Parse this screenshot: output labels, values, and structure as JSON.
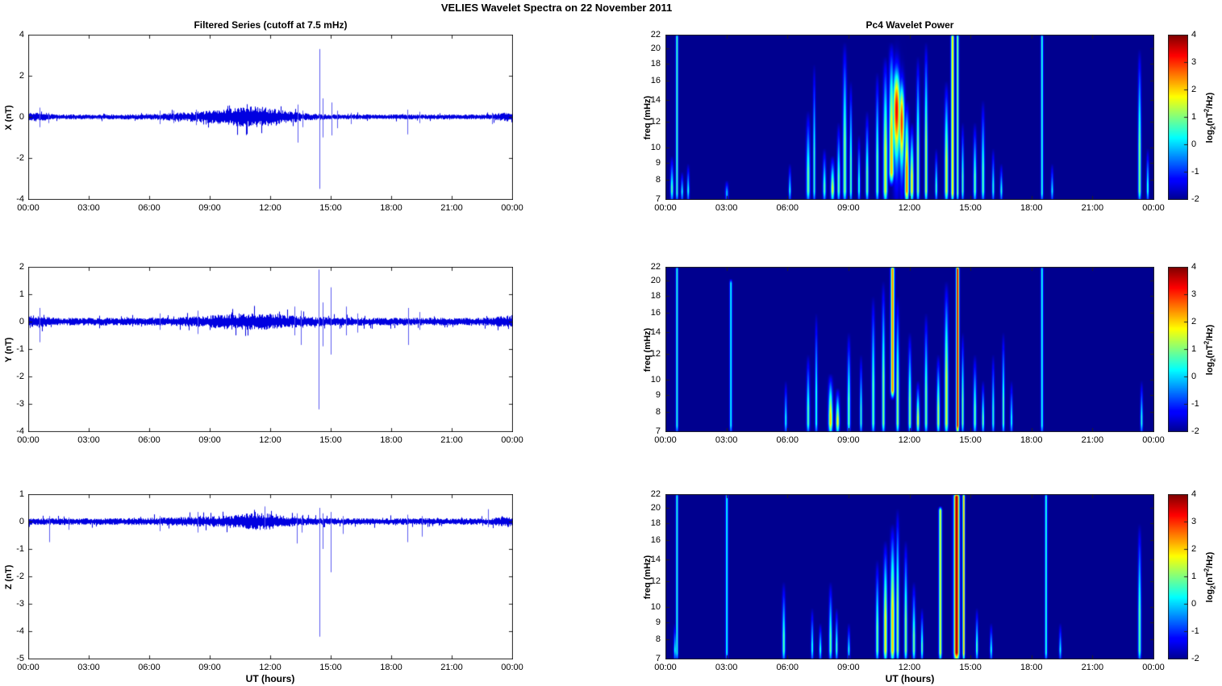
{
  "figure": {
    "title": "VELIES Wavelet Spectra on 22 November  2011"
  },
  "axis_labels": {
    "x": "UT (hours)",
    "freq": "freq (mHz)",
    "colorbar": {
      "p1": "log",
      "p2": "2",
      "p3": "(nT",
      "p4": "2",
      "p5": "/Hz)"
    }
  },
  "x_axis": {
    "range_hours": [
      0,
      24
    ],
    "tick_hours": [
      0,
      3,
      6,
      9,
      12,
      15,
      18,
      21,
      24
    ],
    "tick_labels": [
      "00:00",
      "03:00",
      "06:00",
      "09:00",
      "12:00",
      "15:00",
      "18:00",
      "21:00",
      "00:00"
    ]
  },
  "colorbar": {
    "range": [
      -2,
      4
    ],
    "ticks": [
      4,
      3,
      2,
      1,
      0,
      -1,
      -2
    ]
  },
  "colors": {
    "series_line": "#0000e0",
    "spike_line": "#5a5af0",
    "axis": "#222222",
    "background": "#ffffff"
  },
  "chart_data": [
    {
      "type": "line",
      "name": "filtered-series-x",
      "title": "Filtered Series (cutoff at 7.5 mHz)",
      "ylabel": "X (nT)",
      "ylim": [
        -4,
        4
      ],
      "yticks": [
        4,
        2,
        0,
        -2,
        -4
      ],
      "seed": 11,
      "noise_base": 0.12,
      "noise_bumps": [
        [
          11.3,
          1.3,
          0.33
        ],
        [
          9.0,
          1.8,
          0.12
        ],
        [
          0.3,
          0.5,
          0.1
        ],
        [
          23.8,
          0.5,
          0.1
        ]
      ],
      "spikes": [
        [
          0.55,
          0.45,
          -0.5
        ],
        [
          1.0,
          0.2,
          -0.3
        ],
        [
          6.5,
          0.3,
          -0.35
        ],
        [
          7.2,
          0.3,
          -0.3
        ],
        [
          8.3,
          0.35,
          -0.4
        ],
        [
          13.35,
          0.6,
          -1.25
        ],
        [
          13.6,
          0.3,
          -0.5
        ],
        [
          14.45,
          3.3,
          -3.5
        ],
        [
          14.6,
          0.9,
          -1.0
        ],
        [
          15.05,
          0.7,
          -0.9
        ],
        [
          15.3,
          0.3,
          -0.55
        ],
        [
          16.0,
          0.2,
          -0.35
        ],
        [
          18.8,
          0.35,
          -0.85
        ],
        [
          19.4,
          0.25,
          -0.3
        ],
        [
          23.0,
          0.2,
          -0.35
        ]
      ]
    },
    {
      "type": "line",
      "name": "filtered-series-y",
      "ylabel": "Y (nT)",
      "ylim": [
        -4,
        2
      ],
      "yticks": [
        2,
        1,
        0,
        -1,
        -2,
        -3,
        -4
      ],
      "seed": 22,
      "noise_base": 0.14,
      "noise_bumps": [
        [
          11.0,
          1.8,
          0.17
        ],
        [
          0.3,
          0.4,
          0.12
        ],
        [
          23.8,
          0.5,
          0.08
        ]
      ],
      "spikes": [
        [
          0.55,
          0.5,
          -0.75
        ],
        [
          6.5,
          0.3,
          -0.3
        ],
        [
          8.4,
          0.4,
          -0.45
        ],
        [
          13.2,
          0.55,
          -0.5
        ],
        [
          13.5,
          0.4,
          -0.85
        ],
        [
          14.4,
          1.9,
          -3.2
        ],
        [
          14.6,
          0.7,
          -0.9
        ],
        [
          15.0,
          1.25,
          -1.2
        ],
        [
          15.75,
          0.55,
          -0.5
        ],
        [
          16.3,
          0.3,
          -0.4
        ],
        [
          18.85,
          0.5,
          -0.85
        ],
        [
          19.4,
          0.35,
          -0.3
        ]
      ]
    },
    {
      "type": "line",
      "name": "filtered-series-z",
      "ylabel": "Z (nT)",
      "ylim": [
        -5,
        1
      ],
      "yticks": [
        1,
        0,
        -1,
        -2,
        -3,
        -4,
        -5
      ],
      "seed": 33,
      "noise_base": 0.12,
      "noise_bumps": [
        [
          11.4,
          1.1,
          0.18
        ],
        [
          8.3,
          1.5,
          0.06
        ],
        [
          23.8,
          0.4,
          0.08
        ]
      ],
      "spikes": [
        [
          1.05,
          0.2,
          -0.75
        ],
        [
          2.0,
          0.15,
          -0.3
        ],
        [
          6.5,
          0.2,
          -0.35
        ],
        [
          8.4,
          0.35,
          -0.4
        ],
        [
          11.7,
          0.55,
          -0.3
        ],
        [
          13.3,
          0.3,
          -0.8
        ],
        [
          13.55,
          0.2,
          -0.4
        ],
        [
          14.45,
          0.5,
          -4.2
        ],
        [
          14.6,
          0.3,
          -1.0
        ],
        [
          15.0,
          0.35,
          -1.85
        ],
        [
          15.6,
          0.2,
          -0.45
        ],
        [
          18.8,
          0.25,
          -0.75
        ],
        [
          19.5,
          0.2,
          -0.55
        ],
        [
          22.8,
          0.45,
          -0.2
        ]
      ]
    },
    {
      "type": "heatmap",
      "name": "pc4-wavelet-power-x",
      "title": "Pc4 Wavelet Power",
      "ylabel": "freq (mHz)",
      "ylim": [
        7,
        22
      ],
      "yscale": "log",
      "yticks": [
        22,
        20,
        18,
        16,
        14,
        12,
        10,
        9,
        8,
        7
      ],
      "clim": [
        -2,
        4
      ],
      "events": [
        [
          0.3,
          7,
          9.5,
          0.8,
          0.05,
          0
        ],
        [
          0.55,
          7,
          22,
          0.7,
          0.04,
          1
        ],
        [
          0.8,
          7,
          8.5,
          0.5,
          0.04,
          0
        ],
        [
          1.1,
          7,
          9,
          0.5,
          0.04,
          0
        ],
        [
          3.0,
          7,
          8,
          0.4,
          0.05,
          0
        ],
        [
          6.1,
          7,
          9,
          0.4,
          0.04,
          0
        ],
        [
          7.0,
          7,
          13,
          0.9,
          0.06,
          0
        ],
        [
          7.3,
          7,
          18,
          0.6,
          0.04,
          0
        ],
        [
          7.8,
          7,
          10,
          0.8,
          0.05,
          0
        ],
        [
          8.2,
          7,
          9.5,
          1.6,
          0.06,
          0
        ],
        [
          8.5,
          7,
          12,
          0.9,
          0.05,
          0
        ],
        [
          8.8,
          7,
          21,
          1.1,
          0.06,
          0
        ],
        [
          9.1,
          7,
          16,
          0.9,
          0.04,
          0
        ],
        [
          9.5,
          7,
          11,
          0.6,
          0.04,
          0
        ],
        [
          9.9,
          7,
          13,
          0.9,
          0.05,
          0
        ],
        [
          10.4,
          7,
          17,
          0.9,
          0.05,
          0
        ],
        [
          10.8,
          7,
          19,
          1.6,
          0.07,
          0
        ],
        [
          11.1,
          8,
          21,
          2.2,
          0.08,
          0
        ],
        [
          11.35,
          9,
          17,
          3.4,
          0.12,
          2
        ],
        [
          11.6,
          8.5,
          15.5,
          3.0,
          0.09,
          2
        ],
        [
          11.85,
          7,
          14,
          2.6,
          0.07,
          0
        ],
        [
          12.1,
          7,
          12,
          1.8,
          0.06,
          0
        ],
        [
          12.4,
          7,
          19,
          1.2,
          0.05,
          0
        ],
        [
          12.8,
          7,
          21,
          1.4,
          0.05,
          0
        ],
        [
          13.3,
          7,
          10,
          0.7,
          0.04,
          0
        ],
        [
          13.8,
          7,
          16,
          1.6,
          0.06,
          0
        ],
        [
          14.1,
          7,
          22,
          2.0,
          0.05,
          1
        ],
        [
          14.35,
          7,
          22,
          1.2,
          0.04,
          1
        ],
        [
          14.6,
          7,
          12,
          0.8,
          0.04,
          0
        ],
        [
          15.2,
          7,
          12,
          0.9,
          0.05,
          0
        ],
        [
          15.6,
          7,
          14,
          0.8,
          0.05,
          0
        ],
        [
          16.1,
          7,
          10,
          0.5,
          0.04,
          0
        ],
        [
          16.5,
          7,
          9,
          0.5,
          0.04,
          0
        ],
        [
          18.5,
          7,
          22,
          0.6,
          0.04,
          1
        ],
        [
          19.0,
          7,
          9,
          0.3,
          0.04,
          0
        ],
        [
          23.3,
          7,
          20,
          1.1,
          0.05,
          0
        ],
        [
          23.7,
          7,
          10,
          0.6,
          0.04,
          0
        ]
      ]
    },
    {
      "type": "heatmap",
      "name": "pc4-wavelet-power-y",
      "ylabel": "freq (mHz)",
      "ylim": [
        7,
        22
      ],
      "yscale": "log",
      "yticks": [
        22,
        20,
        18,
        16,
        14,
        12,
        10,
        9,
        8,
        7
      ],
      "clim": [
        -2,
        4
      ],
      "events": [
        [
          0.55,
          7,
          22,
          0.5,
          0.04,
          1
        ],
        [
          3.2,
          7,
          20,
          0.35,
          0.04,
          1
        ],
        [
          5.9,
          7,
          10,
          0.4,
          0.04,
          0
        ],
        [
          7.0,
          7,
          12,
          0.8,
          0.05,
          0
        ],
        [
          7.4,
          7,
          16,
          0.6,
          0.04,
          0
        ],
        [
          8.1,
          7,
          10.5,
          2.1,
          0.07,
          0
        ],
        [
          8.45,
          7,
          9.5,
          1.8,
          0.06,
          0
        ],
        [
          9.0,
          7,
          14,
          0.9,
          0.05,
          0
        ],
        [
          9.6,
          7,
          12,
          0.6,
          0.04,
          0
        ],
        [
          10.2,
          7,
          18,
          0.9,
          0.05,
          0
        ],
        [
          10.7,
          7,
          20,
          1.1,
          0.05,
          0
        ],
        [
          11.15,
          9,
          22,
          2.6,
          0.06,
          1
        ],
        [
          11.4,
          7,
          18,
          1.2,
          0.05,
          0
        ],
        [
          12.0,
          7,
          14,
          1.1,
          0.05,
          0
        ],
        [
          12.4,
          7,
          10,
          1.6,
          0.05,
          0
        ],
        [
          12.8,
          7,
          16,
          1.0,
          0.05,
          0
        ],
        [
          13.4,
          7,
          12,
          1.4,
          0.05,
          0
        ],
        [
          13.8,
          7,
          20,
          1.6,
          0.06,
          0
        ],
        [
          14.35,
          7,
          22,
          3.6,
          0.05,
          1
        ],
        [
          14.6,
          7,
          14,
          1.0,
          0.04,
          0
        ],
        [
          15.2,
          7,
          12,
          0.9,
          0.05,
          0
        ],
        [
          15.6,
          7,
          10,
          1.0,
          0.04,
          0
        ],
        [
          16.1,
          7,
          12,
          0.6,
          0.04,
          0
        ],
        [
          16.6,
          7,
          14,
          0.9,
          0.04,
          0
        ],
        [
          17.0,
          7,
          10,
          0.4,
          0.04,
          0
        ],
        [
          18.5,
          7,
          22,
          0.5,
          0.04,
          1
        ],
        [
          23.4,
          7,
          10,
          0.5,
          0.04,
          0
        ]
      ]
    },
    {
      "type": "heatmap",
      "name": "pc4-wavelet-power-z",
      "ylabel": "freq (mHz)",
      "ylim": [
        7,
        22
      ],
      "yscale": "log",
      "yticks": [
        22,
        20,
        18,
        16,
        14,
        12,
        10,
        9,
        8,
        7
      ],
      "clim": [
        -2,
        4
      ],
      "events": [
        [
          0.45,
          7,
          9,
          0.4,
          0.04,
          0
        ],
        [
          0.55,
          7,
          22,
          0.5,
          0.04,
          1
        ],
        [
          3.0,
          7,
          22,
          0.4,
          0.04,
          1
        ],
        [
          5.8,
          7,
          12,
          0.8,
          0.05,
          0
        ],
        [
          7.2,
          7,
          10,
          0.5,
          0.04,
          0
        ],
        [
          7.6,
          7,
          9,
          0.6,
          0.04,
          0
        ],
        [
          8.1,
          7,
          12,
          0.9,
          0.05,
          0
        ],
        [
          8.4,
          7,
          10,
          0.7,
          0.04,
          0
        ],
        [
          9.0,
          7,
          9,
          0.4,
          0.04,
          0
        ],
        [
          10.4,
          7,
          14,
          1.0,
          0.05,
          0
        ],
        [
          10.8,
          7,
          16,
          1.9,
          0.06,
          0
        ],
        [
          11.15,
          7,
          18,
          2.1,
          0.07,
          0
        ],
        [
          11.4,
          7,
          20,
          1.3,
          0.05,
          0
        ],
        [
          11.8,
          7,
          16,
          1.2,
          0.05,
          0
        ],
        [
          12.2,
          7,
          12,
          1.0,
          0.05,
          0
        ],
        [
          12.6,
          7,
          10,
          0.9,
          0.04,
          0
        ],
        [
          13.5,
          7,
          20,
          1.6,
          0.05,
          1
        ],
        [
          14.3,
          7,
          22,
          3.9,
          0.09,
          1
        ],
        [
          14.65,
          7,
          22,
          2.2,
          0.04,
          1
        ],
        [
          15.3,
          7,
          10,
          0.8,
          0.04,
          0
        ],
        [
          16.0,
          7,
          9,
          0.5,
          0.04,
          0
        ],
        [
          18.7,
          7,
          22,
          0.6,
          0.04,
          1
        ],
        [
          19.4,
          7,
          9,
          0.3,
          0.04,
          0
        ],
        [
          23.3,
          7,
          18,
          0.9,
          0.05,
          0
        ]
      ]
    }
  ]
}
